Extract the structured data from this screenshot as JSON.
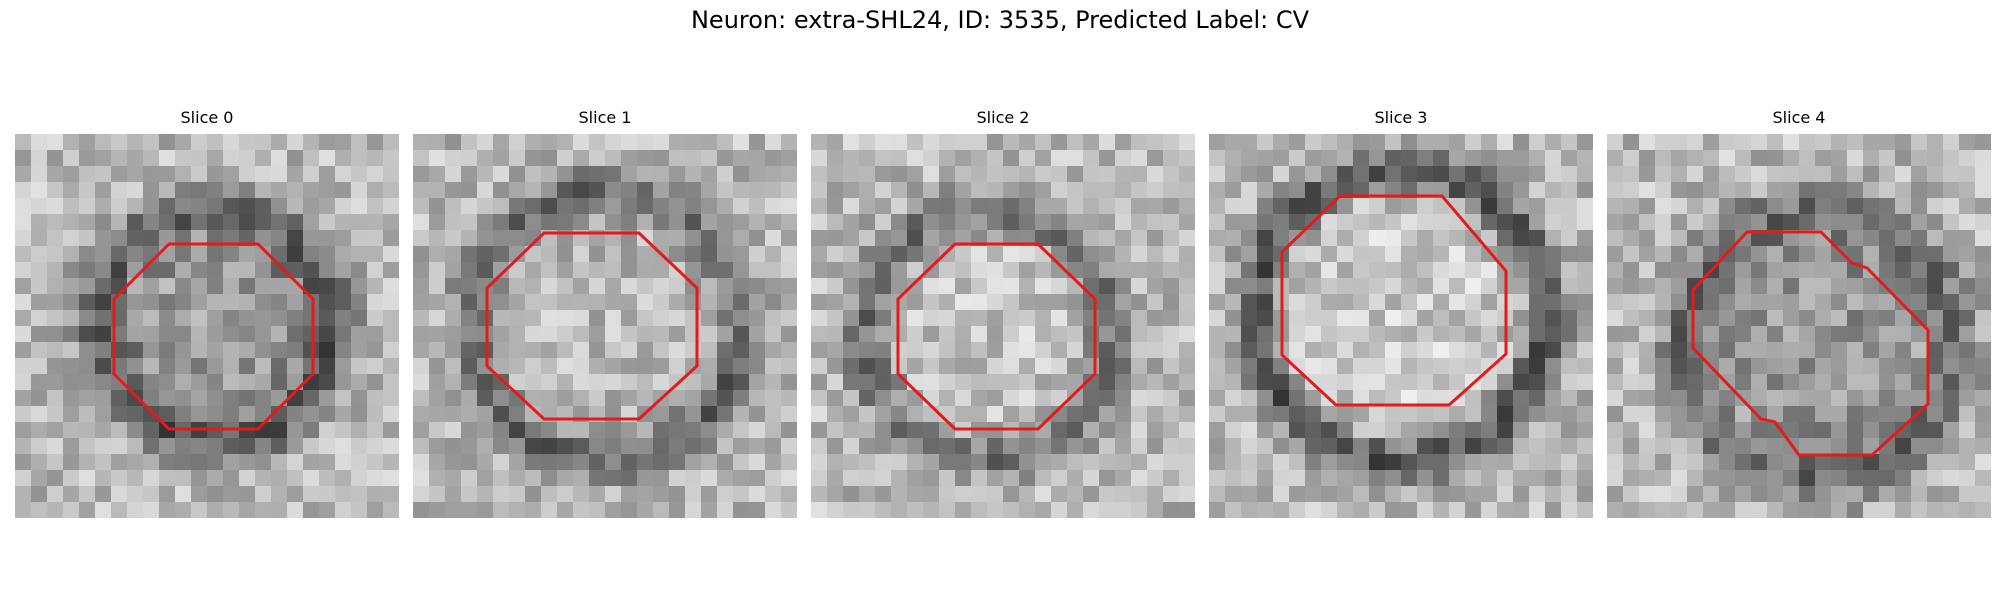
{
  "figure": {
    "title": "Neuron: extra-SHL24, ID: 3535, Predicted Label: CV",
    "contour_color": "#e41a1c"
  },
  "slices": [
    {
      "label": "Slice 0"
    },
    {
      "label": "Slice 1"
    },
    {
      "label": "Slice 2"
    },
    {
      "label": "Slice 3"
    },
    {
      "label": "Slice 4"
    }
  ]
}
